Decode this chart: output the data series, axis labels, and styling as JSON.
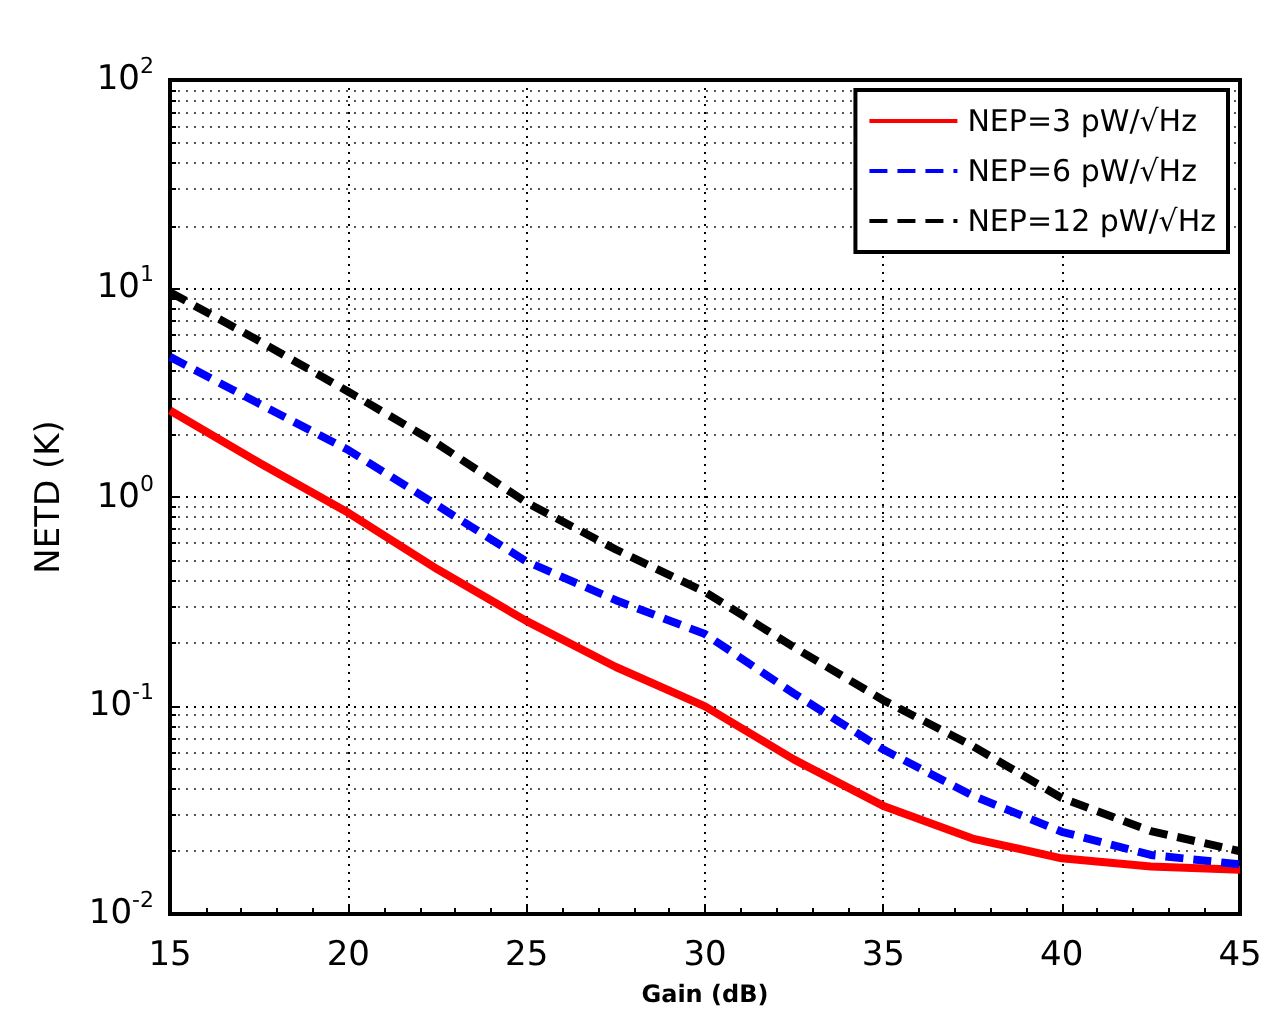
{
  "chart_data": {
    "type": "line",
    "xlabel": "Gain (dB)",
    "ylabel": "NETD (K)",
    "x": [
      15,
      17.5,
      20,
      22.5,
      25,
      27.5,
      30,
      32.5,
      35,
      37.5,
      40,
      42.5,
      45
    ],
    "series": [
      {
        "name": "NEP=3 pW/√Hz",
        "color": "#ff0000",
        "line_style": "solid",
        "values": [
          2.6,
          1.46,
          0.84,
          0.45,
          0.254,
          0.153,
          0.099,
          0.055,
          0.033,
          0.023,
          0.0185,
          0.0169,
          0.0163
        ]
      },
      {
        "name": "NEP=6 pW/√Hz",
        "color": "#0000ff",
        "line_style": "dashed",
        "values": [
          4.7,
          2.8,
          1.68,
          0.91,
          0.49,
          0.32,
          0.22,
          0.114,
          0.0615,
          0.037,
          0.0248,
          0.0192,
          0.0173
        ]
      },
      {
        "name": "NEP=12 pW/√Hz",
        "color": "#000000",
        "line_style": "dashed",
        "values": [
          9.6,
          5.6,
          3.2,
          1.8,
          0.94,
          0.56,
          0.35,
          0.19,
          0.106,
          0.064,
          0.036,
          0.025,
          0.02
        ]
      }
    ],
    "xlim": [
      15,
      45
    ],
    "xticks": [
      15,
      20,
      25,
      30,
      35,
      40,
      45
    ],
    "ylim": [
      0.01,
      100
    ],
    "yticks": [
      {
        "value": 0.01,
        "label": "10$^{-2}$"
      },
      {
        "value": 0.1,
        "label": "10$^{-1}$"
      },
      {
        "value": 1,
        "label": "10$^{0}$"
      },
      {
        "value": 10,
        "label": "10$^{1}$"
      },
      {
        "value": 100,
        "label": "10$^{2}$"
      }
    ],
    "log": "y",
    "grid": true,
    "legend": "top right",
    "marker": "none"
  }
}
